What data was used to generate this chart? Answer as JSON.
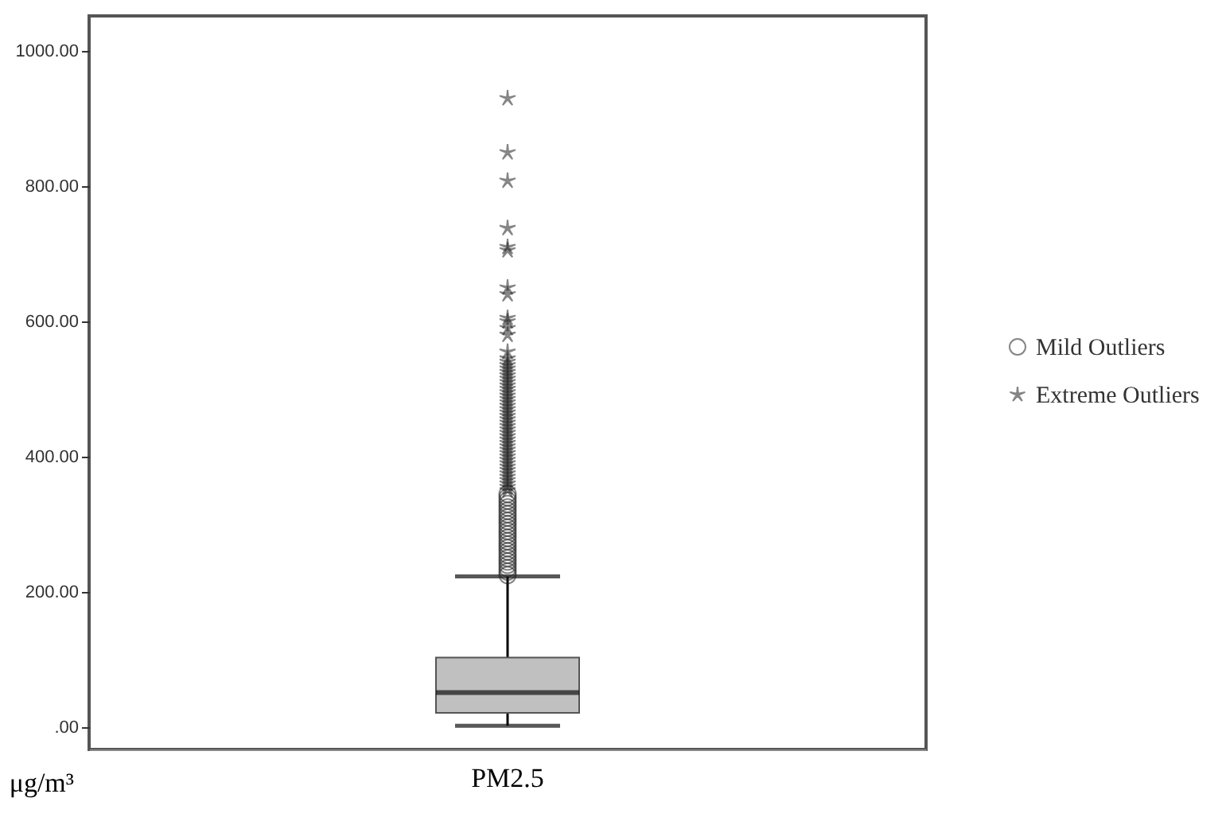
{
  "chart_data": {
    "type": "box",
    "ylabel": "μg/m³",
    "categories": [
      "PM2.5"
    ],
    "boxes": [
      {
        "low": 2,
        "q1": 21,
        "median": 51,
        "q3": 103,
        "high": 223
      }
    ],
    "color": "#c0c0c0",
    "series": [
      {
        "name": "Mild Outliers",
        "type": "scatter",
        "marker": "circle",
        "color": "#222222",
        "x": [
          "PM2.5",
          "PM2.5",
          "PM2.5",
          "PM2.5",
          "PM2.5",
          "PM2.5",
          "PM2.5",
          "PM2.5",
          "PM2.5",
          "PM2.5",
          "PM2.5",
          "PM2.5",
          "PM2.5",
          "PM2.5",
          "PM2.5",
          "PM2.5",
          "PM2.5",
          "PM2.5",
          "PM2.5",
          "PM2.5",
          "PM2.5",
          "PM2.5",
          "PM2.5",
          "PM2.5",
          "PM2.5"
        ],
        "values": [
          225,
          230,
          235,
          240,
          245,
          250,
          255,
          260,
          265,
          270,
          275,
          280,
          285,
          290,
          295,
          300,
          305,
          310,
          315,
          320,
          325,
          330,
          335,
          340,
          345
        ]
      },
      {
        "name": "Extreme Outliers",
        "type": "scatter",
        "marker": "star",
        "color": "#222222",
        "x": [
          "PM2.5",
          "PM2.5",
          "PM2.5",
          "PM2.5",
          "PM2.5",
          "PM2.5",
          "PM2.5",
          "PM2.5",
          "PM2.5",
          "PM2.5",
          "PM2.5",
          "PM2.5",
          "PM2.5",
          "PM2.5",
          "PM2.5",
          "PM2.5",
          "PM2.5",
          "PM2.5",
          "PM2.5",
          "PM2.5",
          "PM2.5",
          "PM2.5",
          "PM2.5",
          "PM2.5",
          "PM2.5",
          "PM2.5",
          "PM2.5",
          "PM2.5",
          "PM2.5",
          "PM2.5",
          "PM2.5",
          "PM2.5",
          "PM2.5",
          "PM2.5",
          "PM2.5",
          "PM2.5",
          "PM2.5",
          "PM2.5",
          "PM2.5",
          "PM2.5",
          "PM2.5",
          "PM2.5",
          "PM2.5",
          "PM2.5",
          "PM2.5",
          "PM2.5",
          "PM2.5",
          "PM2.5",
          "PM2.5",
          "PM2.5",
          "PM2.5",
          "PM2.5",
          "PM2.5"
        ],
        "values": [
          350,
          355,
          360,
          365,
          370,
          375,
          380,
          385,
          390,
          395,
          400,
          405,
          410,
          415,
          420,
          425,
          430,
          435,
          440,
          445,
          450,
          455,
          460,
          465,
          470,
          475,
          480,
          485,
          490,
          495,
          500,
          505,
          510,
          515,
          520,
          525,
          530,
          535,
          540,
          545,
          555,
          580,
          590,
          600,
          605,
          640,
          650,
          705,
          710,
          738,
          808,
          850,
          930
        ]
      }
    ],
    "ylim": [
      -33,
      1052
    ],
    "yticks": [
      {
        "value": 0,
        "label": ".00"
      },
      {
        "value": 200,
        "label": "200.00"
      },
      {
        "value": 400,
        "label": "400.00"
      },
      {
        "value": 600,
        "label": "600.00"
      },
      {
        "value": 800,
        "label": "800.00"
      },
      {
        "value": 1000,
        "label": "1000.00"
      }
    ],
    "grid": false,
    "legend": "right"
  }
}
